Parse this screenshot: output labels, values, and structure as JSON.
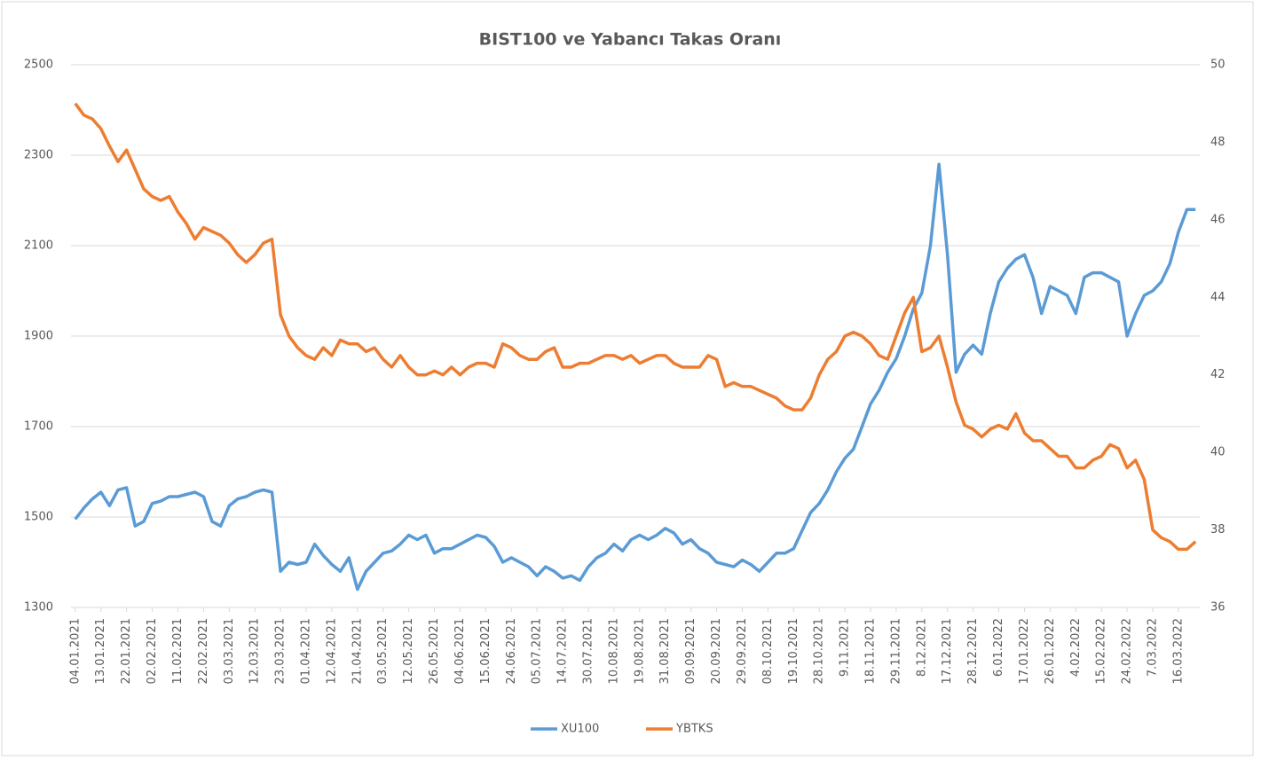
{
  "chart_data": {
    "type": "line",
    "title": "BIST100 ve Yabancı Takas Oranı",
    "categories": [
      "04.01.2021",
      null,
      null,
      "13.01.2021",
      null,
      null,
      "22.01.2021",
      null,
      null,
      "02.02.2021",
      null,
      null,
      "11.02.2021",
      null,
      null,
      "22.02.2021",
      null,
      null,
      "03.03.2021",
      null,
      null,
      "12.03.2021",
      null,
      null,
      "23.03.2021",
      null,
      null,
      "01.04.2021",
      null,
      null,
      "12.04.2021",
      null,
      null,
      "21.04.2021",
      null,
      null,
      "03.05.2021",
      null,
      null,
      "12.05.2021",
      null,
      null,
      "26.05.2021",
      null,
      null,
      "04.06.2021",
      null,
      null,
      "15.06.2021",
      null,
      null,
      "24.06.2021",
      null,
      null,
      "05.07.2021",
      null,
      null,
      "14.07.2021",
      null,
      null,
      "30.07.2021",
      null,
      null,
      "10.08.2021",
      null,
      null,
      "19.08.2021",
      null,
      null,
      "31.08.2021",
      null,
      null,
      "09.09.2021",
      null,
      null,
      "20.09.2021",
      null,
      null,
      "29.09.2021",
      null,
      null,
      "08.10.2021",
      null,
      null,
      "19.10.2021",
      null,
      null,
      "28.10.2021",
      null,
      null,
      "9.11.2021",
      null,
      null,
      "18.11.2021",
      null,
      null,
      "29.11.2021",
      null,
      null,
      "8.12.2021",
      null,
      null,
      "17.12.2021",
      null,
      null,
      "28.12.2021",
      null,
      null,
      "6.01.2022",
      null,
      null,
      "17.01.2022",
      null,
      null,
      "26.01.2022",
      null,
      null,
      "4.02.2022",
      null,
      null,
      "15.02.2022",
      null,
      null,
      "24.02.2022",
      null,
      null,
      "7.03.2022",
      null,
      null,
      "16.03.2022",
      null,
      null
    ],
    "series": [
      {
        "name": "XU100",
        "color": "#5b9bd5",
        "values": [
          1495,
          1520,
          1540,
          1555,
          1525,
          1560,
          1565,
          1480,
          1490,
          1530,
          1535,
          1545,
          1545,
          1550,
          1555,
          1545,
          1490,
          1480,
          1525,
          1540,
          1545,
          1555,
          1560,
          1555,
          1380,
          1400,
          1395,
          1400,
          1440,
          1415,
          1395,
          1380,
          1410,
          1340,
          1380,
          1400,
          1420,
          1425,
          1440,
          1460,
          1450,
          1460,
          1420,
          1430,
          1430,
          1440,
          1450,
          1460,
          1455,
          1435,
          1400,
          1410,
          1400,
          1390,
          1370,
          1390,
          1380,
          1365,
          1370,
          1360,
          1390,
          1410,
          1420,
          1440,
          1425,
          1450,
          1460,
          1450,
          1460,
          1475,
          1465,
          1440,
          1450,
          1430,
          1420,
          1400,
          1395,
          1390,
          1405,
          1395,
          1380,
          1400,
          1420,
          1420,
          1430,
          1470,
          1510,
          1530,
          1560,
          1600,
          1630,
          1650,
          1700,
          1750,
          1780,
          1820,
          1850,
          1900,
          1960,
          1995,
          2100,
          2280,
          2080,
          1820,
          1860,
          1880,
          1860,
          1950,
          2020,
          2050,
          2070,
          2080,
          2030,
          1950,
          2010,
          2000,
          1990,
          1950,
          2030,
          2040,
          2040,
          2030,
          2020,
          1900,
          1950,
          1990,
          2000,
          2020,
          2060,
          2130,
          2180,
          2180
        ]
      },
      {
        "name": "YBTKS",
        "color": "#ed7d31",
        "axis": "y2",
        "values": [
          49.0,
          48.7,
          48.6,
          48.35,
          47.9,
          47.5,
          47.8,
          47.3,
          46.8,
          46.6,
          46.5,
          46.6,
          46.2,
          45.9,
          45.5,
          45.8,
          45.7,
          45.6,
          45.4,
          45.1,
          44.9,
          45.1,
          45.4,
          45.5,
          43.55,
          43.0,
          42.7,
          42.5,
          42.4,
          42.7,
          42.5,
          42.9,
          42.8,
          42.8,
          42.6,
          42.7,
          42.4,
          42.2,
          42.5,
          42.2,
          42.0,
          42.0,
          42.1,
          42.0,
          42.2,
          42.0,
          42.2,
          42.3,
          42.3,
          42.2,
          42.8,
          42.7,
          42.5,
          42.4,
          42.4,
          42.6,
          42.7,
          42.2,
          42.2,
          42.3,
          42.3,
          42.4,
          42.5,
          42.5,
          42.4,
          42.5,
          42.3,
          42.4,
          42.5,
          42.5,
          42.3,
          42.2,
          42.2,
          42.2,
          42.5,
          42.4,
          41.7,
          41.8,
          41.7,
          41.7,
          41.6,
          41.5,
          41.4,
          41.2,
          41.1,
          41.1,
          41.4,
          42.0,
          42.4,
          42.6,
          43.0,
          43.1,
          43.0,
          42.8,
          42.5,
          42.4,
          43.0,
          43.6,
          44.0,
          42.6,
          42.7,
          43.0,
          42.2,
          41.3,
          40.7,
          40.6,
          40.4,
          40.6,
          40.7,
          40.6,
          41.0,
          40.5,
          40.3,
          40.3,
          40.1,
          39.9,
          39.9,
          39.6,
          39.6,
          39.8,
          39.9,
          40.2,
          40.1,
          39.6,
          39.8,
          39.3,
          38.0,
          37.8,
          37.7,
          37.5,
          37.5,
          37.7
        ]
      }
    ],
    "ylim": [
      1300,
      2500
    ],
    "yticks": [
      1300,
      1500,
      1700,
      1900,
      2100,
      2300,
      2500
    ],
    "y2lim": [
      36,
      50
    ],
    "y2ticks": [
      36,
      38,
      40,
      42,
      44,
      46,
      48,
      50
    ],
    "grid": true,
    "legend": "bottom"
  }
}
